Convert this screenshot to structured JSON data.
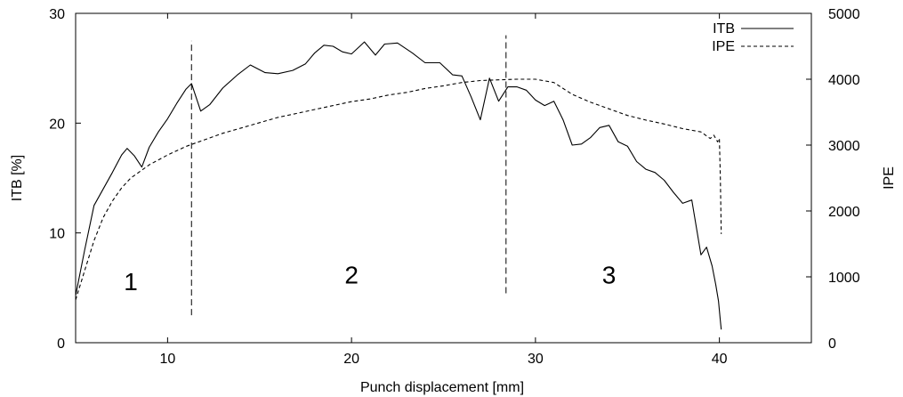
{
  "chart_data": {
    "type": "line",
    "xlabel": "Punch displacement [mm]",
    "ylabel": "ITB [%]",
    "y2label": "IPE",
    "xlim": [
      5,
      45
    ],
    "ylim": [
      0,
      30
    ],
    "y2lim": [
      0,
      5000
    ],
    "xticks": [
      "10",
      "20",
      "30",
      "40"
    ],
    "yticks": [
      "0",
      "10",
      "20",
      "30"
    ],
    "y2ticks": [
      "0",
      "1000",
      "2000",
      "3000",
      "4000",
      "5000"
    ],
    "grid": false,
    "legend_position": "top-right",
    "series": [
      {
        "name": "ITB",
        "axis": "left",
        "style": "solid",
        "x": [
          5.0,
          5.5,
          6.0,
          6.5,
          7.0,
          7.5,
          7.8,
          8.2,
          8.6,
          9.0,
          9.5,
          10.0,
          10.5,
          11.0,
          11.3,
          11.8,
          12.3,
          13.0,
          13.8,
          14.5,
          15.3,
          16.0,
          16.8,
          17.5,
          18.0,
          18.5,
          19.0,
          19.5,
          20.0,
          20.7,
          21.3,
          21.8,
          22.5,
          23.3,
          24.0,
          24.8,
          25.5,
          26.0,
          26.5,
          27.0,
          27.5,
          28.0,
          28.5,
          29.0,
          29.5,
          30.0,
          30.5,
          31.0,
          31.5,
          32.0,
          32.5,
          33.0,
          33.5,
          34.0,
          34.5,
          35.0,
          35.5,
          36.0,
          36.5,
          37.0,
          37.5,
          38.0,
          38.5,
          39.0,
          39.3,
          39.6,
          39.8,
          39.95,
          40.05,
          40.1
        ],
        "y": [
          4.3,
          8.5,
          12.5,
          14.0,
          15.5,
          17.1,
          17.7,
          17.0,
          16.0,
          17.8,
          19.2,
          20.4,
          21.8,
          23.1,
          23.6,
          21.1,
          21.7,
          23.2,
          24.4,
          25.3,
          24.6,
          24.5,
          24.8,
          25.4,
          26.4,
          27.1,
          27.0,
          26.5,
          26.3,
          27.4,
          26.2,
          27.2,
          27.3,
          26.4,
          25.5,
          25.5,
          24.4,
          24.3,
          22.4,
          20.3,
          24.1,
          22.0,
          23.3,
          23.3,
          23.0,
          22.1,
          21.6,
          22.0,
          20.3,
          18.0,
          18.1,
          18.7,
          19.6,
          19.8,
          18.3,
          17.9,
          16.5,
          15.8,
          15.5,
          14.8,
          13.7,
          12.7,
          13.0,
          8.0,
          8.7,
          7.0,
          5.3,
          3.8,
          2.0,
          1.2
        ]
      },
      {
        "name": "IPE",
        "axis": "right",
        "style": "dashed",
        "x": [
          5.0,
          5.5,
          6.0,
          6.5,
          7.0,
          7.5,
          8.0,
          8.5,
          9.0,
          10.0,
          11.0,
          12.0,
          13.0,
          14.0,
          15.0,
          16.0,
          17.0,
          18.0,
          19.0,
          20.0,
          21.0,
          22.0,
          23.0,
          24.0,
          25.0,
          26.0,
          27.0,
          28.0,
          29.0,
          30.0,
          31.0,
          32.0,
          33.0,
          34.0,
          35.0,
          36.0,
          37.0,
          38.0,
          39.0,
          39.5,
          39.7,
          39.9,
          40.0,
          40.05,
          40.1
        ],
        "y": [
          650,
          1100,
          1550,
          1900,
          2150,
          2350,
          2500,
          2600,
          2700,
          2850,
          2980,
          3080,
          3180,
          3260,
          3340,
          3420,
          3480,
          3540,
          3600,
          3660,
          3700,
          3760,
          3800,
          3860,
          3900,
          3950,
          3980,
          3990,
          4000,
          4000,
          3950,
          3770,
          3650,
          3550,
          3450,
          3380,
          3320,
          3250,
          3200,
          3100,
          3150,
          3050,
          3100,
          2500,
          1650
        ]
      }
    ],
    "vlines": [
      {
        "x": 11.3,
        "y_from": 2.5,
        "y_to": 27.5
      },
      {
        "x": 28.4,
        "y_from": 4.5,
        "y_to": 28.0
      }
    ],
    "annotations": [
      {
        "text": "1",
        "x": 8.0,
        "y": 4.8
      },
      {
        "text": "2",
        "x": 20.0,
        "y": 5.4
      },
      {
        "text": "3",
        "x": 34.0,
        "y": 5.4
      }
    ]
  }
}
